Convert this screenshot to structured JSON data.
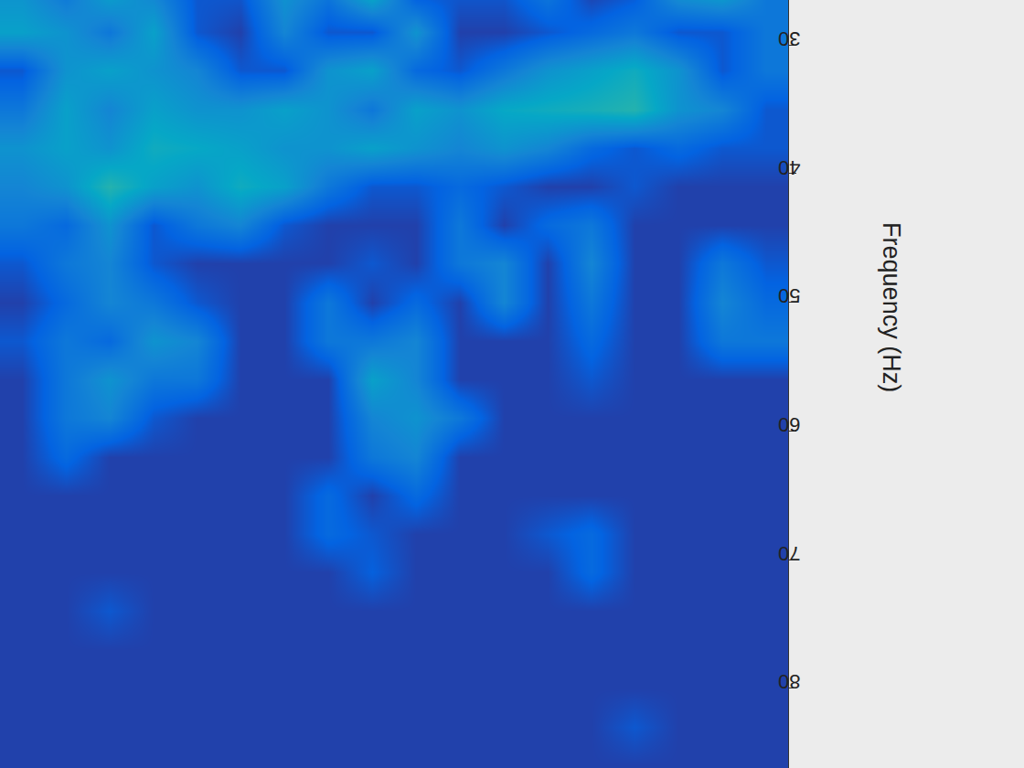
{
  "chart_data": {
    "type": "heatmap",
    "y_label": "Frequency (Hz)",
    "tick_labels": "y",
    "ylim": [
      26.5,
      86.2
    ],
    "yticks": [
      30,
      40,
      50,
      60,
      70,
      80
    ],
    "zlim": [
      0,
      1
    ],
    "y": [
      26,
      29,
      32,
      35,
      38,
      41,
      44,
      47,
      50,
      53,
      56,
      59,
      62,
      65,
      68,
      71,
      74,
      77,
      80,
      83,
      86
    ],
    "z": [
      [
        0.3,
        0.2,
        0.35,
        0.25,
        0.1,
        0.1,
        0.3,
        0.2,
        0.4,
        0.1,
        0.1,
        0.1,
        0.2,
        0.05,
        0.1,
        0.3,
        0.35,
        0.2
      ],
      [
        0.35,
        0.3,
        0.2,
        0.35,
        0.1,
        0.05,
        0.25,
        0.1,
        0.1,
        0.3,
        0.05,
        0.05,
        0.1,
        0.15,
        0.2,
        0.1,
        0.1,
        0.2
      ],
      [
        0.1,
        0.3,
        0.35,
        0.3,
        0.25,
        0.1,
        0.1,
        0.3,
        0.35,
        0.15,
        0.1,
        0.2,
        0.3,
        0.35,
        0.4,
        0.3,
        0.1,
        0.2
      ],
      [
        0.2,
        0.35,
        0.25,
        0.35,
        0.3,
        0.3,
        0.35,
        0.3,
        0.2,
        0.35,
        0.3,
        0.38,
        0.4,
        0.42,
        0.45,
        0.3,
        0.25,
        0.1
      ],
      [
        0.3,
        0.35,
        0.3,
        0.4,
        0.38,
        0.35,
        0.3,
        0.3,
        0.35,
        0.3,
        0.25,
        0.3,
        0.25,
        0.15,
        0.1,
        0.15,
        0.1,
        0.1
      ],
      [
        0.25,
        0.3,
        0.45,
        0.35,
        0.3,
        0.4,
        0.35,
        0.2,
        0.1,
        0.1,
        0.15,
        0.1,
        0.05,
        0.05,
        0.1,
        0.05,
        0.05,
        0.05
      ],
      [
        0.2,
        0.15,
        0.3,
        0.1,
        0.2,
        0.25,
        0.1,
        0.05,
        0.05,
        0.05,
        0.2,
        0.05,
        0.15,
        0.2,
        0.05,
        0.05,
        0.05,
        0.05
      ],
      [
        0.1,
        0.2,
        0.25,
        0.1,
        0.05,
        0.05,
        0.05,
        0.05,
        0.1,
        0.05,
        0.2,
        0.25,
        0.05,
        0.25,
        0.05,
        0.05,
        0.2,
        0.1
      ],
      [
        0.05,
        0.15,
        0.25,
        0.2,
        0.1,
        0.05,
        0.05,
        0.2,
        0.05,
        0.15,
        0.05,
        0.25,
        0.05,
        0.2,
        0.05,
        0.05,
        0.25,
        0.15
      ],
      [
        0.1,
        0.2,
        0.15,
        0.3,
        0.25,
        0.05,
        0.05,
        0.2,
        0.2,
        0.25,
        0.05,
        0.05,
        0.05,
        0.15,
        0.05,
        0.05,
        0.2,
        0.2
      ],
      [
        0.05,
        0.2,
        0.3,
        0.2,
        0.2,
        0.05,
        0.05,
        0.05,
        0.35,
        0.25,
        0.05,
        0.05,
        0.05,
        0.1,
        0.05,
        0.05,
        0.05,
        0.05
      ],
      [
        0.05,
        0.2,
        0.25,
        0.1,
        0.05,
        0.05,
        0.05,
        0.05,
        0.25,
        0.3,
        0.2,
        0.05,
        0.05,
        0.05,
        0.05,
        0.05,
        0.05,
        0.05
      ],
      [
        0.05,
        0.15,
        0.05,
        0.05,
        0.05,
        0.05,
        0.05,
        0.05,
        0.2,
        0.25,
        0.05,
        0.05,
        0.05,
        0.05,
        0.05,
        0.05,
        0.05,
        0.05
      ],
      [
        0.05,
        0.05,
        0.05,
        0.05,
        0.05,
        0.05,
        0.05,
        0.15,
        0.05,
        0.15,
        0.05,
        0.05,
        0.05,
        0.05,
        0.05,
        0.05,
        0.05,
        0.05
      ],
      [
        0.05,
        0.05,
        0.05,
        0.05,
        0.05,
        0.05,
        0.05,
        0.15,
        0.1,
        0.05,
        0.05,
        0.05,
        0.1,
        0.15,
        0.05,
        0.05,
        0.05,
        0.05
      ],
      [
        0.05,
        0.05,
        0.05,
        0.05,
        0.05,
        0.05,
        0.05,
        0.05,
        0.12,
        0.05,
        0.05,
        0.05,
        0.05,
        0.15,
        0.05,
        0.05,
        0.05,
        0.05
      ],
      [
        0.05,
        0.05,
        0.1,
        0.05,
        0.05,
        0.05,
        0.05,
        0.05,
        0.05,
        0.05,
        0.05,
        0.05,
        0.05,
        0.05,
        0.05,
        0.05,
        0.05,
        0.05
      ],
      [
        0.05,
        0.05,
        0.05,
        0.05,
        0.05,
        0.05,
        0.05,
        0.05,
        0.05,
        0.05,
        0.05,
        0.05,
        0.05,
        0.05,
        0.05,
        0.05,
        0.05,
        0.05
      ],
      [
        0.05,
        0.05,
        0.05,
        0.05,
        0.05,
        0.05,
        0.05,
        0.05,
        0.05,
        0.05,
        0.05,
        0.05,
        0.05,
        0.05,
        0.05,
        0.05,
        0.05,
        0.05
      ],
      [
        0.05,
        0.05,
        0.05,
        0.05,
        0.05,
        0.05,
        0.05,
        0.05,
        0.05,
        0.05,
        0.05,
        0.05,
        0.05,
        0.05,
        0.1,
        0.05,
        0.05,
        0.05
      ],
      [
        0.05,
        0.05,
        0.05,
        0.05,
        0.05,
        0.05,
        0.05,
        0.05,
        0.05,
        0.05,
        0.05,
        0.05,
        0.05,
        0.05,
        0.05,
        0.05,
        0.05,
        0.05
      ]
    ]
  }
}
